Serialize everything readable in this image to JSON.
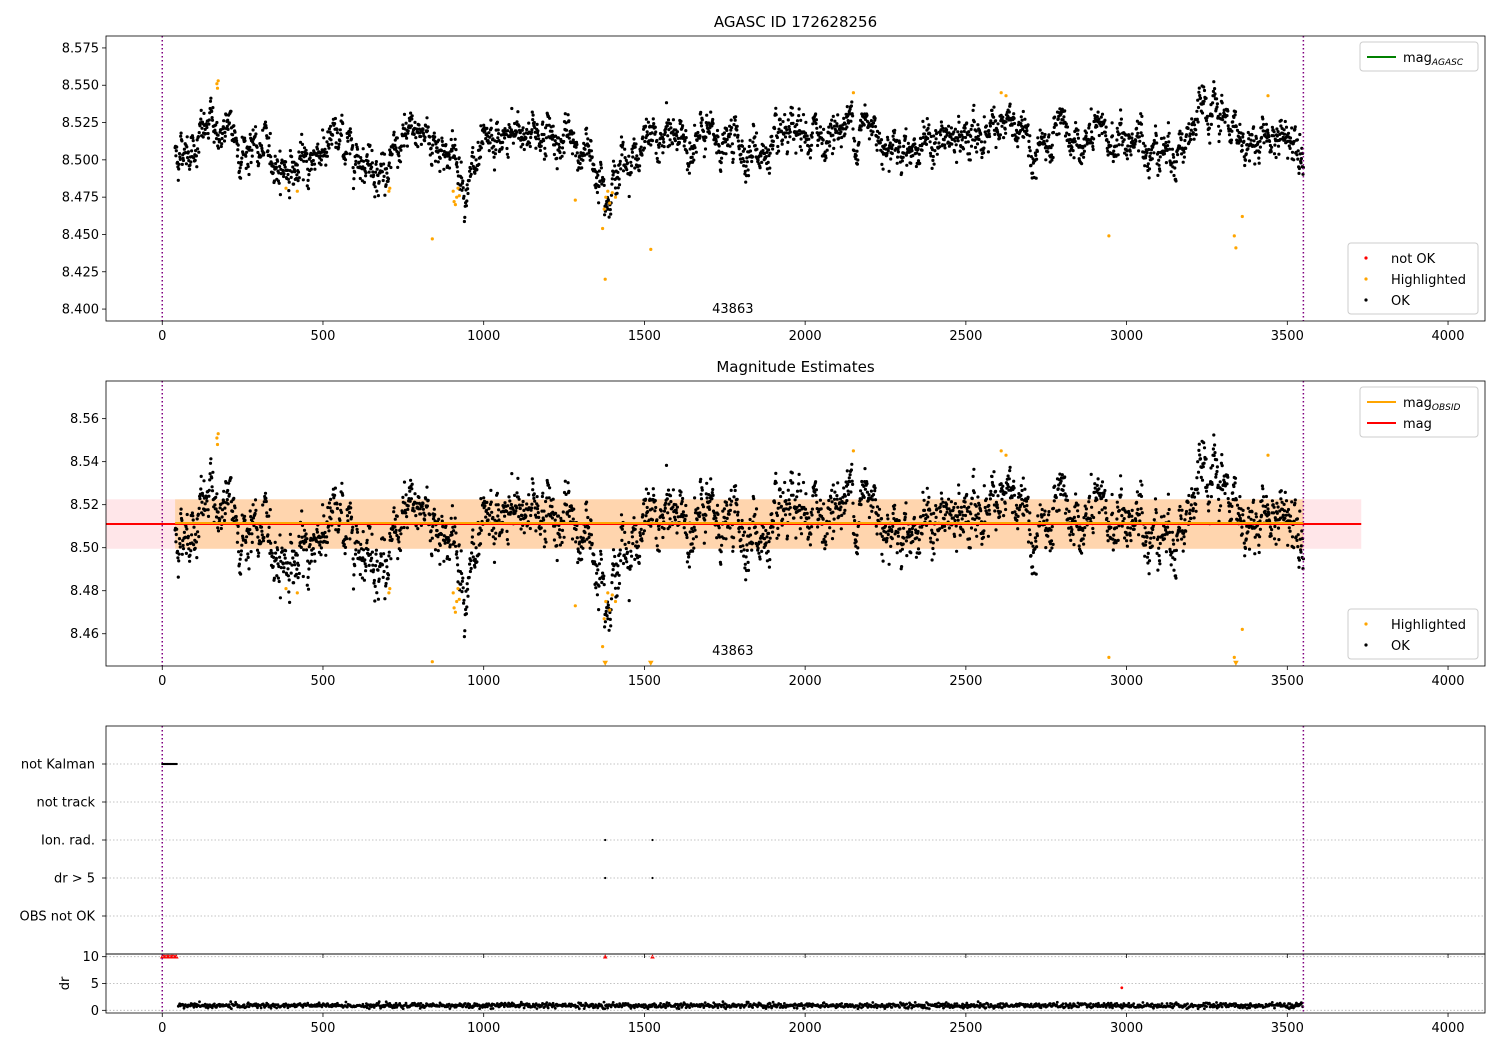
{
  "chart_data": [
    {
      "type": "scatter",
      "title": "AGASC ID 172628256",
      "xlabel": "",
      "ylabel": "",
      "xlim": [
        -175,
        4115
      ],
      "ylim": [
        8.392,
        8.583
      ],
      "xticks": [
        0,
        500,
        1000,
        1500,
        2000,
        2500,
        3000,
        3500,
        4000
      ],
      "yticks": [
        8.4,
        8.425,
        8.45,
        8.475,
        8.5,
        8.525,
        8.55,
        8.575
      ],
      "ytick_decimals": 3,
      "grid": false,
      "vlines": [
        0,
        3550
      ],
      "annotation": {
        "text": "43863",
        "x": 1775,
        "y": 8.4
      },
      "legend_top": {
        "position": "top-right",
        "entries": [
          {
            "label": "mag",
            "sub": "AGASC",
            "color": "#008000"
          }
        ]
      },
      "legend_bottom": {
        "position": "bottom-right",
        "entries": [
          {
            "label": "not OK",
            "color": "#ff0000"
          },
          {
            "label": "Highlighted",
            "color": "#ffa500"
          },
          {
            "label": "OK",
            "color": "#000000"
          }
        ]
      },
      "series": [
        {
          "name": "OK",
          "color": "#000000",
          "x_range": [
            40,
            3550
          ],
          "trend": [
            [
              40,
              8.505
            ],
            [
              160,
              8.522
            ],
            [
              230,
              8.512
            ],
            [
              380,
              8.497
            ],
            [
              440,
              8.492
            ],
            [
              500,
              8.512
            ],
            [
              620,
              8.508
            ],
            [
              700,
              8.492
            ],
            [
              800,
              8.52
            ],
            [
              900,
              8.505
            ],
            [
              950,
              8.485
            ],
            [
              1050,
              8.508
            ],
            [
              1150,
              8.522
            ],
            [
              1250,
              8.512
            ],
            [
              1350,
              8.5
            ],
            [
              1400,
              8.487
            ],
            [
              1460,
              8.505
            ],
            [
              1600,
              8.515
            ],
            [
              1800,
              8.51
            ],
            [
              1900,
              8.502
            ],
            [
              2000,
              8.512
            ],
            [
              2150,
              8.525
            ],
            [
              2300,
              8.512
            ],
            [
              2500,
              8.51
            ],
            [
              2600,
              8.528
            ],
            [
              2700,
              8.505
            ],
            [
              2900,
              8.512
            ],
            [
              3000,
              8.512
            ],
            [
              3150,
              8.51
            ],
            [
              3250,
              8.528
            ],
            [
              3400,
              8.512
            ],
            [
              3550,
              8.518
            ]
          ]
        },
        {
          "name": "Highlighted",
          "color": "#ffa500",
          "points": [
            [
              170,
              8.551
            ],
            [
              172,
              8.548
            ],
            [
              174,
              8.553
            ],
            [
              385,
              8.481
            ],
            [
              420,
              8.479
            ],
            [
              705,
              8.479
            ],
            [
              708,
              8.481
            ],
            [
              840,
              8.447
            ],
            [
              905,
              8.479
            ],
            [
              908,
              8.472
            ],
            [
              912,
              8.47
            ],
            [
              916,
              8.475
            ],
            [
              920,
              8.481
            ],
            [
              924,
              8.476
            ],
            [
              1285,
              8.473
            ],
            [
              1370,
              8.454
            ],
            [
              1375,
              8.467
            ],
            [
              1378,
              8.42
            ],
            [
              1380,
              8.475
            ],
            [
              1386,
              8.479
            ],
            [
              1392,
              8.471
            ],
            [
              1400,
              8.478
            ],
            [
              1410,
              8.475
            ],
            [
              1520,
              8.44
            ],
            [
              2150,
              8.545
            ],
            [
              2610,
              8.545
            ],
            [
              2625,
              8.543
            ],
            [
              2945,
              8.449
            ],
            [
              3335,
              8.449
            ],
            [
              3340,
              8.441
            ],
            [
              3360,
              8.462
            ],
            [
              3440,
              8.543
            ]
          ]
        }
      ]
    },
    {
      "type": "scatter",
      "title": "Magnitude Estimates",
      "xlabel": "",
      "ylabel": "",
      "xlim": [
        -175,
        4115
      ],
      "ylim": [
        8.445,
        8.5775
      ],
      "xticks": [
        0,
        500,
        1000,
        1500,
        2000,
        2500,
        3000,
        3500,
        4000
      ],
      "yticks": [
        8.46,
        8.48,
        8.5,
        8.52,
        8.54,
        8.56
      ],
      "ytick_decimals": 2,
      "grid": false,
      "vlines": [
        0,
        3550
      ],
      "annotation": {
        "text": "43863",
        "x": 1775,
        "y": 8.446
      },
      "bands": [
        {
          "x": [
            -175,
            3730
          ],
          "y": [
            8.4995,
            8.5225
          ],
          "color": "#ff9aa6",
          "opacity": 0.25
        },
        {
          "x": [
            40,
            3550
          ],
          "y": [
            8.4995,
            8.5225
          ],
          "color": "#ffa500",
          "opacity": 0.25
        }
      ],
      "hlines": [
        {
          "name": "mag",
          "y": 8.511,
          "x": [
            -175,
            3730
          ],
          "color": "#ff0000"
        },
        {
          "name": "mag_OBSID",
          "y": 8.5115,
          "x": [
            40,
            3550
          ],
          "color": "#ffa500"
        }
      ],
      "legend_top": {
        "position": "top-right",
        "entries": [
          {
            "label": "mag",
            "sub": "OBSID",
            "color": "#ffa500"
          },
          {
            "label": "mag",
            "sub": "",
            "color": "#ff0000"
          }
        ]
      },
      "legend_bottom": {
        "position": "bottom-right",
        "entries": [
          {
            "label": "Highlighted",
            "color": "#ffa500"
          },
          {
            "label": "OK",
            "color": "#000000"
          }
        ]
      },
      "series": [
        {
          "name": "OK",
          "color": "#000000",
          "x_range": [
            40,
            3550
          ],
          "same_as_panel": 0
        },
        {
          "name": "Highlighted",
          "color": "#ffa500",
          "same_as_panel": 0,
          "clip_low_marker": "triangle-down"
        }
      ]
    },
    {
      "type": "scatter",
      "title": "",
      "xlabel": "",
      "ylabel": "",
      "xlim": [
        -175,
        4115
      ],
      "xticks": [
        0,
        500,
        1000,
        1500,
        2000,
        2500,
        3000,
        3500,
        4000
      ],
      "categories": [
        "not Kalman",
        "not track",
        "Ion. rad.",
        "dr > 5",
        "OBS not OK"
      ],
      "grid": true,
      "vlines": [
        0,
        3550
      ],
      "series": [
        {
          "name": "not Kalman",
          "color": "#000000",
          "x": [
            0,
            3,
            6,
            9,
            12,
            15,
            18,
            21,
            24,
            27,
            30,
            33,
            36,
            39,
            42,
            45
          ]
        },
        {
          "name": "not track",
          "color": "#000000",
          "x": []
        },
        {
          "name": "Ion. rad.",
          "color": "#000000",
          "x": [
            1378,
            1525
          ]
        },
        {
          "name": "dr > 5",
          "color": "#000000",
          "x": [
            1378,
            1525
          ]
        },
        {
          "name": "OBS not OK",
          "color": "#000000",
          "x": []
        }
      ]
    },
    {
      "type": "scatter",
      "title": "",
      "xlabel": "",
      "ylabel": "dr",
      "xlim": [
        -175,
        4115
      ],
      "ylim": [
        -0.5,
        10.5
      ],
      "xticks": [
        0,
        500,
        1000,
        1500,
        2000,
        2500,
        3000,
        3500,
        4000
      ],
      "yticks": [
        0,
        5,
        10
      ],
      "ytick_decimals": 0,
      "grid": true,
      "vlines": [
        0,
        3550
      ],
      "series": [
        {
          "name": "dr",
          "color": "#000000",
          "x_range": [
            50,
            3550
          ],
          "y_range": [
            0.3,
            1.6
          ]
        },
        {
          "name": "dr clipped",
          "color": "#ff0000",
          "marker": "triangle-up",
          "points": [
            [
              0,
              10
            ],
            [
              4,
              10
            ],
            [
              8,
              10
            ],
            [
              12,
              10
            ],
            [
              16,
              10
            ],
            [
              20,
              10
            ],
            [
              24,
              10
            ],
            [
              28,
              10
            ],
            [
              32,
              10
            ],
            [
              36,
              10
            ],
            [
              40,
              10
            ],
            [
              44,
              10
            ],
            [
              1378,
              10
            ],
            [
              1525,
              10
            ]
          ]
        },
        {
          "name": "dr outlier",
          "color": "#ff0000",
          "points": [
            [
              2985,
              4.2
            ]
          ]
        }
      ]
    }
  ]
}
